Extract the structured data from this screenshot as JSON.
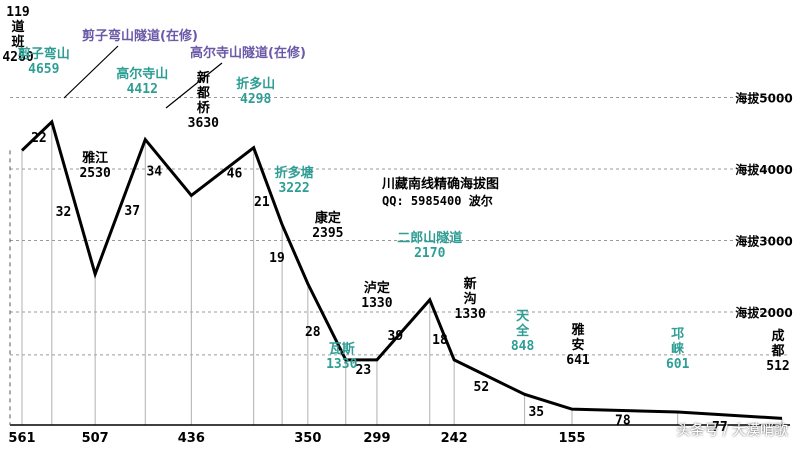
{
  "chart_data": {
    "type": "line",
    "title": "川藏南线精确海拔图",
    "subtitle": "QQ: 5985400 波尔",
    "xlabel": "",
    "ylabel": "",
    "ylim": [
      0,
      5400
    ],
    "xlim": [
      561,
      0
    ],
    "grid": true,
    "y_ticks": [
      {
        "value": 2000,
        "label": "海拔2000"
      },
      {
        "value": 3000,
        "label": "海拔3000"
      },
      {
        "value": 4000,
        "label": "海拔4000"
      },
      {
        "value": 5000,
        "label": "海拔5000"
      }
    ],
    "x_ticks": [
      {
        "value": 561,
        "label": "561"
      },
      {
        "value": 507,
        "label": "507"
      },
      {
        "value": 436,
        "label": "436"
      },
      {
        "value": 350,
        "label": "350"
      },
      {
        "value": 299,
        "label": "299"
      },
      {
        "value": 242,
        "label": "242"
      },
      {
        "value": 155,
        "label": "155"
      }
    ],
    "points": [
      {
        "name": "道班",
        "km": 561,
        "elev": 4260,
        "label": "119\n道\n班\n4260",
        "color": "#000000"
      },
      {
        "name": "剪子弯山",
        "km": 539,
        "elev": 4659,
        "label": "剪子弯山\n4659",
        "color": "#2e9e94"
      },
      {
        "name": "雅江",
        "km": 507,
        "elev": 2530,
        "label": "雅江\n2530",
        "color": "#000000"
      },
      {
        "name": "高尔寺山",
        "km": 470,
        "elev": 4412,
        "label": "高尔寺山\n4412",
        "color": "#2e9e94"
      },
      {
        "name": "新都桥",
        "km": 436,
        "elev": 3630,
        "label": "新\n都\n桥\n3630",
        "color": "#000000"
      },
      {
        "name": "折多山",
        "km": 390,
        "elev": 4298,
        "label": "折多山\n4298",
        "color": "#2e9e94"
      },
      {
        "name": "折多塘",
        "km": 369,
        "elev": 3222,
        "label": "折多塘\n3222",
        "color": "#2e9e94"
      },
      {
        "name": "康定",
        "km": 350,
        "elev": 2395,
        "label": "康定\n2395",
        "color": "#000000"
      },
      {
        "name": "瓦斯",
        "km": 322,
        "elev": 1330,
        "label": "瓦斯\n1330",
        "color": "#2e9e94"
      },
      {
        "name": "泸定",
        "km": 299,
        "elev": 1330,
        "label": "泸定\n1330",
        "color": "#000000"
      },
      {
        "name": "二郎山隧道",
        "km": 260,
        "elev": 2170,
        "label": "二郎山隧道\n2170",
        "color": "#2e9e94"
      },
      {
        "name": "新沟",
        "km": 242,
        "elev": 1330,
        "label": "新\n沟\n1330",
        "color": "#000000"
      },
      {
        "name": "天全",
        "km": 190,
        "elev": 848,
        "label": "天\n全\n848",
        "color": "#2e9e94"
      },
      {
        "name": "雅安",
        "km": 155,
        "elev": 641,
        "label": "雅\n安\n641",
        "color": "#000000"
      },
      {
        "name": "邛崃",
        "km": 77,
        "elev": 601,
        "label": "邛\n崃\n601",
        "color": "#2e9e94"
      },
      {
        "name": "成都",
        "km": 0,
        "elev": 512,
        "label": "成\n都\n512",
        "color": "#000000"
      }
    ],
    "segment_distances": [
      "22",
      "32",
      "37",
      "34",
      "46",
      "21",
      "19",
      "28",
      "23",
      "39",
      "18",
      "52",
      "35",
      "78",
      "77"
    ],
    "annotations": [
      {
        "text": "剪子弯山隧道(在修)",
        "color": "#6b5aa8"
      },
      {
        "text": "高尔寺山隧道(在修)",
        "color": "#6b5aa8"
      }
    ]
  },
  "watermark": "头条号 / 大漠哨歌"
}
